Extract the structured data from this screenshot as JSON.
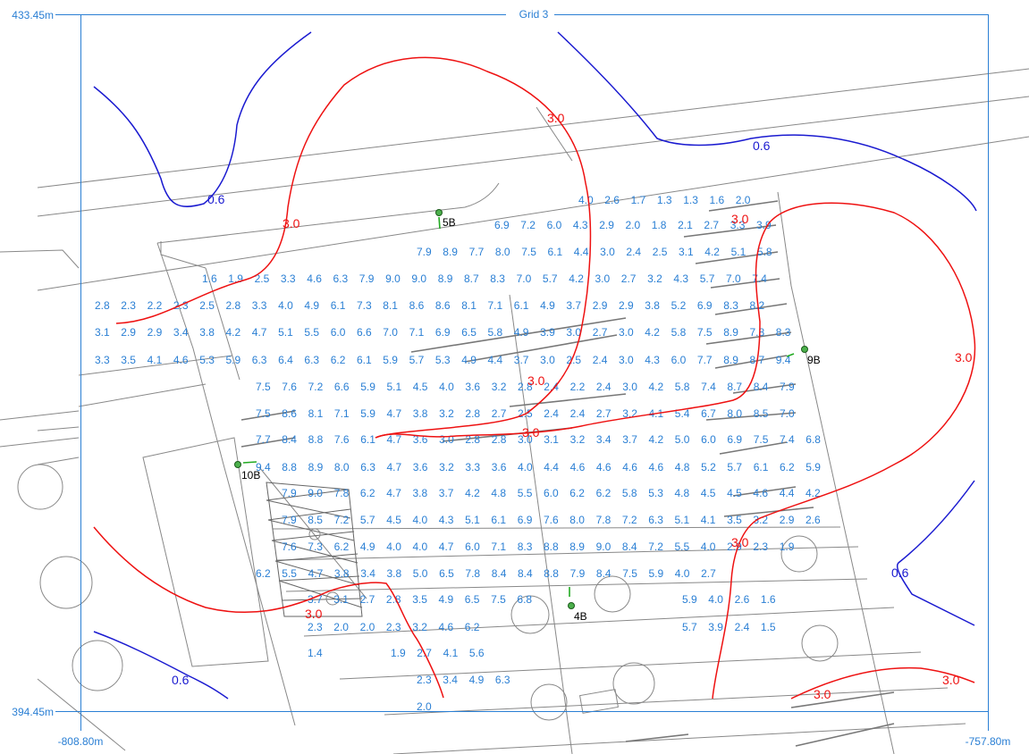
{
  "grid_title": "Grid 3",
  "axes": {
    "y_top": "433.45m",
    "y_bottom": "394.45m",
    "x_left": "-808.80m",
    "x_right": "-757.80m"
  },
  "colors": {
    "frame": "#2a7fd4",
    "values": "#2a7fd4",
    "contour_high": "#ee1111",
    "contour_low": "#1a1ad0",
    "plan_lines": "#888888",
    "luminaire": "#22aa22"
  },
  "contour_labels": [
    {
      "text": "3.0",
      "level": "high"
    },
    {
      "text": "3.0",
      "level": "high"
    },
    {
      "text": "3.0",
      "level": "high"
    },
    {
      "text": "3.0",
      "level": "high"
    },
    {
      "text": "3.0",
      "level": "high"
    },
    {
      "text": "3.0",
      "level": "high"
    },
    {
      "text": "3.0",
      "level": "high"
    },
    {
      "text": "3.0",
      "level": "high"
    },
    {
      "text": "3.0",
      "level": "high"
    },
    {
      "text": "3.0",
      "level": "high"
    },
    {
      "text": "0.6",
      "level": "low"
    },
    {
      "text": "0.6",
      "level": "low"
    },
    {
      "text": "0.6",
      "level": "low"
    },
    {
      "text": "0.6",
      "level": "low"
    }
  ],
  "luminaires": [
    {
      "id": "5B",
      "icon": "luminaire-icon"
    },
    {
      "id": "9B",
      "icon": "luminaire-icon"
    },
    {
      "id": "10B",
      "icon": "luminaire-icon"
    },
    {
      "id": "4B",
      "icon": "luminaire-icon"
    }
  ],
  "rows": [
    {
      "start": 647,
      "y": 228,
      "values": [
        "4.0",
        "2.6",
        "1.7",
        "1.3",
        "1.3",
        "1.6",
        "2.0"
      ]
    },
    {
      "start": 553,
      "y": 256,
      "values": [
        "6.9",
        "7.2",
        "6.0",
        "4.3",
        "2.9",
        "2.0",
        "1.8",
        "2.1",
        "2.7",
        "3.3",
        "3.9"
      ]
    },
    {
      "start": 466,
      "y": 286,
      "values": [
        "7.9",
        "8.9",
        "7.7",
        "8.0",
        "7.5",
        "6.1",
        "4.4",
        "3.0",
        "2.4",
        "2.5",
        "3.1",
        "4.2",
        "5.1",
        "5.8"
      ]
    },
    {
      "start": 226,
      "y": 316,
      "values": [
        "1.6",
        "1.9",
        "2.5",
        "3.3",
        "4.6",
        "6.3",
        "7.9",
        "9.0",
        "9.0",
        "8.9",
        "8.7",
        "8.3",
        "7.0",
        "5.7",
        "4.2",
        "3.0",
        "2.7",
        "3.2",
        "4.3",
        "5.7",
        "7.0",
        "7.4"
      ]
    },
    {
      "start": 106,
      "y": 346,
      "values": [
        "2.8",
        "2.3",
        "2.2",
        "2.3",
        "2.5",
        "2.8",
        "3.3",
        "4.0",
        "4.9",
        "6.1",
        "7.3",
        "8.1",
        "8.6",
        "8.6",
        "8.1",
        "7.1",
        "6.1",
        "4.9",
        "3.7",
        "2.9",
        "2.9",
        "3.8",
        "5.2",
        "6.9",
        "8.3",
        "8.2"
      ]
    },
    {
      "start": 106,
      "y": 376,
      "values": [
        "3.1",
        "2.9",
        "2.9",
        "3.4",
        "3.8",
        "4.2",
        "4.7",
        "5.1",
        "5.5",
        "6.0",
        "6.6",
        "7.0",
        "7.1",
        "6.9",
        "6.5",
        "5.8",
        "4.9",
        "3.9",
        "3.0",
        "2.7",
        "3.0",
        "4.2",
        "5.8",
        "7.5",
        "8.9",
        "7.8",
        "8.3"
      ]
    },
    {
      "start": 106,
      "y": 407,
      "values": [
        "3.3",
        "3.5",
        "4.1",
        "4.6",
        "5.3",
        "5.9",
        "6.3",
        "6.4",
        "6.3",
        "6.2",
        "6.1",
        "5.9",
        "5.7",
        "5.3",
        "4.9",
        "4.4",
        "3.7",
        "3.0",
        "2.5",
        "2.4",
        "3.0",
        "4.3",
        "6.0",
        "7.7",
        "8.9",
        "8.7",
        "9.4"
      ]
    },
    {
      "start": 286,
      "y": 437,
      "values": [
        "7.5",
        "7.6",
        "7.2",
        "6.6",
        "5.9",
        "5.1",
        "4.5",
        "4.0",
        "3.6",
        "3.2",
        "2.8",
        "2.4",
        "2.2",
        "2.4",
        "3.0",
        "4.2",
        "5.8",
        "7.4",
        "8.7",
        "8.4",
        "7.9"
      ]
    },
    {
      "start": 286,
      "y": 467,
      "values": [
        "7.5",
        "8.6",
        "8.1",
        "7.1",
        "5.9",
        "4.7",
        "3.8",
        "3.2",
        "2.8",
        "2.7",
        "2.5",
        "2.4",
        "2.4",
        "2.7",
        "3.2",
        "4.1",
        "5.4",
        "6.7",
        "8.0",
        "8.5",
        "7.0"
      ]
    },
    {
      "start": 286,
      "y": 496,
      "values": [
        "7.7",
        "8.4",
        "8.8",
        "7.6",
        "6.1",
        "4.7",
        "3.6",
        "3.0",
        "2.8",
        "2.8",
        "3.0",
        "3.1",
        "3.2",
        "3.4",
        "3.7",
        "4.2",
        "5.0",
        "6.0",
        "6.9",
        "7.5",
        "7.4",
        "6.8"
      ]
    },
    {
      "start": 286,
      "y": 527,
      "values": [
        "9.4",
        "8.8",
        "8.9",
        "8.0",
        "6.3",
        "4.7",
        "3.6",
        "3.2",
        "3.3",
        "3.6",
        "4.0",
        "4.4",
        "4.6",
        "4.6",
        "4.6",
        "4.6",
        "4.8",
        "5.2",
        "5.7",
        "6.1",
        "6.2",
        "5.9"
      ]
    },
    {
      "start": 315,
      "y": 556,
      "values": [
        "7.9",
        "9.0",
        "7.8",
        "6.2",
        "4.7",
        "3.8",
        "3.7",
        "4.2",
        "4.8",
        "5.5",
        "6.0",
        "6.2",
        "6.2",
        "5.8",
        "5.3",
        "4.8",
        "4.5",
        "4.5",
        "4.6",
        "4.4",
        "4.2"
      ]
    },
    {
      "start": 315,
      "y": 586,
      "values": [
        "7.9",
        "8.5",
        "7.2",
        "5.7",
        "4.5",
        "4.0",
        "4.3",
        "5.1",
        "6.1",
        "6.9",
        "7.6",
        "8.0",
        "7.8",
        "7.2",
        "6.3",
        "5.1",
        "4.1",
        "3.5",
        "3.2",
        "2.9",
        "2.6"
      ]
    },
    {
      "start": 315,
      "y": 616,
      "values": [
        "7.6",
        "7.3",
        "6.2",
        "4.9",
        "4.0",
        "4.0",
        "4.7",
        "6.0",
        "7.1",
        "8.3",
        "8.8",
        "8.9",
        "9.0",
        "8.4",
        "7.2",
        "5.5",
        "4.0",
        "2.9",
        "2.3",
        "1.9"
      ]
    },
    {
      "start": 286,
      "y": 646,
      "values": [
        "6.2",
        "5.5",
        "4.7",
        "3.8",
        "3.4",
        "3.8",
        "5.0",
        "6.5",
        "7.8",
        "8.4",
        "8.4",
        "8.8",
        "7.9",
        "8.4",
        "7.5",
        "5.9",
        "4.0",
        "2.7"
      ]
    },
    {
      "start": 344,
      "y": 675,
      "values": [
        "3.7",
        "3.1",
        "2.7",
        "2.8",
        "3.5",
        "4.9",
        "6.5",
        "7.5",
        "6.8"
      ],
      "extra": {
        "start": 763,
        "values": [
          "5.9",
          "4.0",
          "2.6",
          "1.6"
        ]
      }
    },
    {
      "start": 344,
      "y": 706,
      "values": [
        "2.3",
        "2.0",
        "2.0",
        "2.3",
        "3.2",
        "4.6",
        "6.2"
      ],
      "extra": {
        "start": 763,
        "values": [
          "5.7",
          "3.9",
          "2.4",
          "1.5"
        ]
      }
    },
    {
      "start": 344,
      "y": 735,
      "values": [
        "1.4"
      ],
      "extra": {
        "start": 437,
        "values": [
          "1.9",
          "2.7",
          "4.1",
          "5.6"
        ]
      }
    },
    {
      "start": 466,
      "y": 765,
      "values": [
        "2.3",
        "3.4",
        "4.9",
        "6.3"
      ]
    },
    {
      "start": 466,
      "y": 795,
      "values": [
        "2.0"
      ]
    }
  ]
}
